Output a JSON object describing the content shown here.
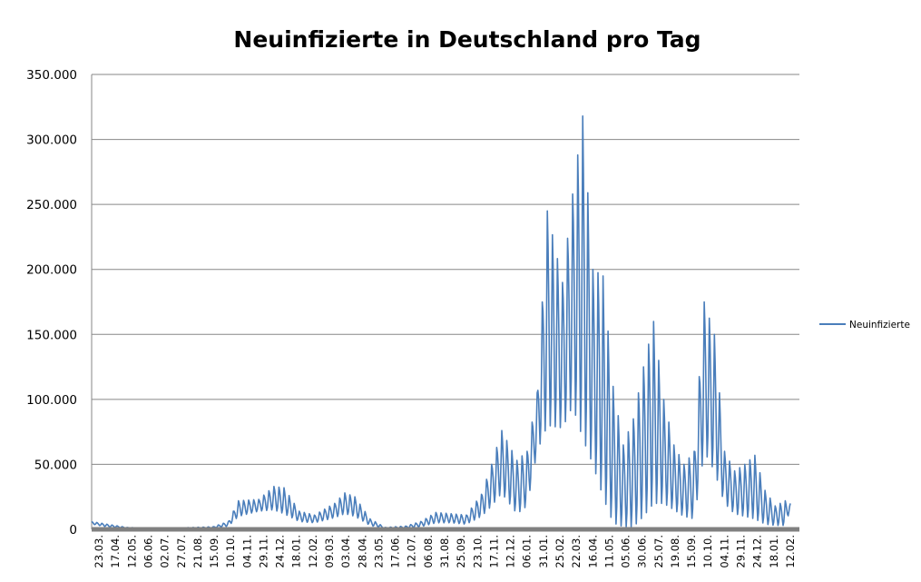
{
  "chart_data": {
    "type": "line",
    "title": "Neuinfizierte in Deutschland pro Tag",
    "xlabel": "",
    "ylabel": "",
    "ylim": [
      0,
      350000
    ],
    "y_ticks": [
      0,
      50000,
      100000,
      150000,
      200000,
      250000,
      300000,
      350000
    ],
    "y_tick_labels": [
      "0",
      "50.000",
      "100.000",
      "150.000",
      "200.000",
      "250.000",
      "300.000",
      "350.000"
    ],
    "x_tick_labels": [
      "23.03.",
      "17.04.",
      "12.05.",
      "06.06.",
      "02.07.",
      "27.07.",
      "21.08.",
      "15.09.",
      "10.10.",
      "04.11.",
      "29.11.",
      "24.12.",
      "18.01.",
      "12.02.",
      "09.03.",
      "03.04.",
      "28.04.",
      "23.05.",
      "17.06.",
      "12.07.",
      "06.08.",
      "31.08.",
      "25.09.",
      "23.10.",
      "17.11.",
      "12.12.",
      "06.01.",
      "31.01.",
      "25.02.",
      "22.03.",
      "16.04.",
      "11.05.",
      "05.06.",
      "30.06.",
      "25.07.",
      "19.08.",
      "15.09.",
      "10.10.",
      "04.11.",
      "29.11.",
      "24.12.",
      "18.01.",
      "12.02."
    ],
    "grid": true,
    "legend_position": "right",
    "series": [
      {
        "name": "Neuinfizierte",
        "color": "#4a7ebb",
        "weekly_oscillation": true,
        "envelope": [
          {
            "week": 0,
            "high": 6000,
            "low": 4000
          },
          {
            "week": 3,
            "high": 4000,
            "low": 2000
          },
          {
            "week": 7,
            "high": 1500,
            "low": 800
          },
          {
            "week": 12,
            "high": 800,
            "low": 400
          },
          {
            "week": 18,
            "high": 1200,
            "low": 600
          },
          {
            "week": 24,
            "high": 2000,
            "low": 1000
          },
          {
            "week": 27,
            "high": 6000,
            "low": 2500
          },
          {
            "week": 29,
            "high": 22000,
            "low": 10000
          },
          {
            "week": 33,
            "high": 23000,
            "low": 14000
          },
          {
            "week": 36,
            "high": 33000,
            "low": 15000
          },
          {
            "week": 38,
            "high": 32000,
            "low": 12000
          },
          {
            "week": 41,
            "high": 14000,
            "low": 6000
          },
          {
            "week": 44,
            "high": 11000,
            "low": 5000
          },
          {
            "week": 48,
            "high": 20000,
            "low": 9000
          },
          {
            "week": 50,
            "high": 28000,
            "low": 12000
          },
          {
            "week": 52,
            "high": 25000,
            "low": 10000
          },
          {
            "week": 55,
            "high": 8000,
            "low": 3000
          },
          {
            "week": 58,
            "high": 1500,
            "low": 500
          },
          {
            "week": 62,
            "high": 2500,
            "low": 800
          },
          {
            "week": 65,
            "high": 6000,
            "low": 2000
          },
          {
            "week": 68,
            "high": 13000,
            "low": 5000
          },
          {
            "week": 71,
            "high": 12000,
            "low": 5000
          },
          {
            "week": 74,
            "high": 11000,
            "low": 4000
          },
          {
            "week": 77,
            "high": 27000,
            "low": 10000
          },
          {
            "week": 79,
            "high": 50000,
            "low": 18000
          },
          {
            "week": 81,
            "high": 76000,
            "low": 28000
          },
          {
            "week": 84,
            "high": 53000,
            "low": 12000
          },
          {
            "week": 86,
            "high": 60000,
            "low": 18000
          },
          {
            "week": 88,
            "high": 105000,
            "low": 60000
          },
          {
            "week": 90,
            "high": 245000,
            "low": 80000
          },
          {
            "week": 93,
            "high": 190000,
            "low": 78000
          },
          {
            "week": 95,
            "high": 258000,
            "low": 95000
          },
          {
            "week": 97,
            "high": 318000,
            "low": 70000
          },
          {
            "week": 99,
            "high": 200000,
            "low": 50000
          },
          {
            "week": 101,
            "high": 195000,
            "low": 25000
          },
          {
            "week": 103,
            "high": 110000,
            "low": 5000
          },
          {
            "week": 105,
            "high": 65000,
            "low": 2000
          },
          {
            "week": 107,
            "high": 85000,
            "low": 2000
          },
          {
            "week": 109,
            "high": 125000,
            "low": 10000
          },
          {
            "week": 111,
            "high": 160000,
            "low": 20000
          },
          {
            "week": 113,
            "high": 100000,
            "low": 20000
          },
          {
            "week": 115,
            "high": 65000,
            "low": 15000
          },
          {
            "week": 117,
            "high": 50000,
            "low": 10000
          },
          {
            "week": 119,
            "high": 60000,
            "low": 8000
          },
          {
            "week": 121,
            "high": 175000,
            "low": 60000
          },
          {
            "week": 123,
            "high": 150000,
            "low": 45000
          },
          {
            "week": 125,
            "high": 60000,
            "low": 20000
          },
          {
            "week": 127,
            "high": 45000,
            "low": 12000
          },
          {
            "week": 129,
            "high": 50000,
            "low": 10000
          },
          {
            "week": 131,
            "high": 57000,
            "low": 8000
          },
          {
            "week": 133,
            "high": 30000,
            "low": 4000
          },
          {
            "week": 135,
            "high": 18000,
            "low": 3000
          },
          {
            "week": 137,
            "high": 22000,
            "low": 3000
          },
          {
            "week": 138,
            "high": 20000,
            "low": 16000
          }
        ]
      }
    ]
  }
}
